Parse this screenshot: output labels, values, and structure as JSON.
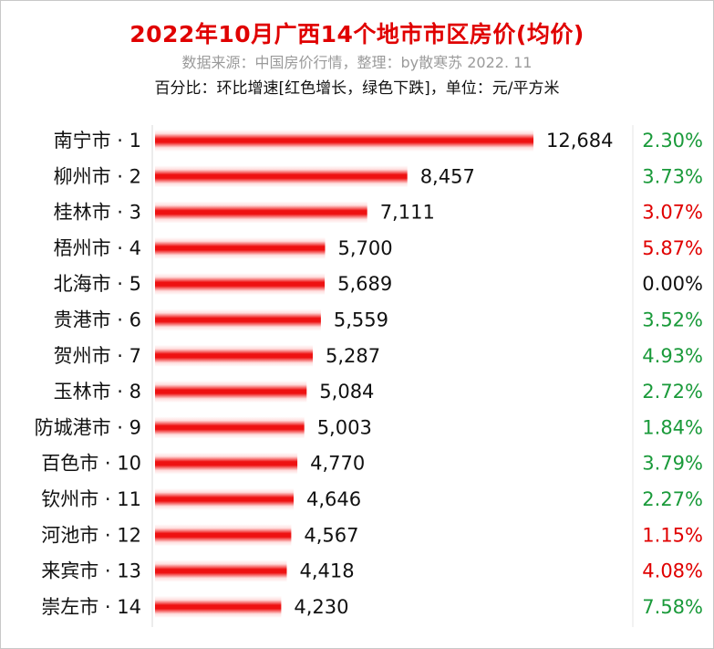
{
  "title": "2022年10月广西14个地市市区房价(均价)",
  "subtitle": "数据来源：中国房价行情，整理：by散寒苏 2022. 11",
  "note": "百分比：环比增速[红色增长，绿色下跌]，单位：元/平方米",
  "colors": {
    "bar": "#ee1111",
    "growth": "#e00000",
    "decline": "#1a9a3a",
    "neutral": "#111111"
  },
  "chart_data": {
    "type": "bar",
    "orientation": "horizontal",
    "categories": [
      "南宁市 · 1",
      "柳州市 · 2",
      "桂林市 · 3",
      "梧州市 · 4",
      "北海市 · 5",
      "贵港市 · 6",
      "贺州市 · 7",
      "玉林市 · 8",
      "防城港市 · 9",
      "百色市 · 10",
      "钦州市 · 11",
      "河池市 · 12",
      "来宾市 · 13",
      "崇左市 · 14"
    ],
    "values": [
      12684,
      8457,
      7111,
      5700,
      5689,
      5559,
      5287,
      5084,
      5003,
      4770,
      4646,
      4567,
      4418,
      4230
    ],
    "value_labels": [
      "12,684",
      "8,457",
      "7,111",
      "5,700",
      "5,689",
      "5,559",
      "5,287",
      "5,084",
      "5,003",
      "4,770",
      "4,646",
      "4,567",
      "4,418",
      "4,230"
    ],
    "change_labels": [
      "2.30%",
      "3.73%",
      "3.07%",
      "5.87%",
      "0.00%",
      "3.52%",
      "4.93%",
      "2.72%",
      "1.84%",
      "3.79%",
      "2.27%",
      "1.15%",
      "4.08%",
      "7.58%"
    ],
    "change_direction": [
      "decline",
      "decline",
      "growth",
      "growth",
      "neutral",
      "decline",
      "decline",
      "decline",
      "decline",
      "decline",
      "decline",
      "growth",
      "growth",
      "decline"
    ],
    "xlim": [
      0,
      12684
    ],
    "grid": false
  }
}
